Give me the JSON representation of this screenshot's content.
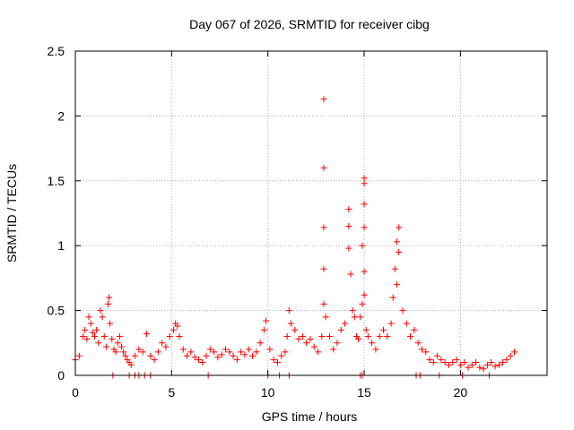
{
  "chart_data": {
    "type": "scatter",
    "title": "Day 067 of 2026, SRMTID for receiver cibg",
    "xlabel": "GPS time / hours",
    "ylabel": "SRMTID / TECUs",
    "xlim": [
      0,
      24.5
    ],
    "ylim": [
      0,
      2.5
    ],
    "x_ticks": [
      0,
      5,
      10,
      15,
      20
    ],
    "x_tick_labels": [
      "0",
      "5",
      "10",
      "15",
      "20"
    ],
    "y_ticks": [
      0,
      0.5,
      1,
      1.5,
      2,
      2.5
    ],
    "y_tick_labels": [
      "0",
      "0.5",
      "1",
      "1.5",
      "2",
      "2.5"
    ],
    "grid": true,
    "marker": "+",
    "marker_color": "#ff0000",
    "series": [
      {
        "name": "SRMTID",
        "x": [
          0.0,
          0.2,
          0.4,
          0.5,
          0.6,
          0.7,
          0.8,
          0.9,
          1.0,
          1.1,
          1.2,
          1.3,
          1.4,
          1.5,
          1.6,
          1.7,
          1.75,
          1.8,
          1.9,
          2.0,
          2.1,
          2.2,
          2.3,
          2.4,
          2.5,
          2.6,
          2.7,
          2.8,
          2.9,
          3.1,
          3.3,
          3.5,
          3.7,
          3.9,
          4.1,
          4.3,
          4.5,
          4.7,
          4.9,
          5.1,
          5.2,
          5.3,
          5.4,
          5.6,
          5.8,
          6.0,
          6.2,
          6.4,
          6.6,
          6.8,
          7.0,
          7.2,
          7.4,
          7.6,
          7.8,
          8.0,
          8.2,
          8.4,
          8.6,
          8.8,
          9.0,
          9.2,
          9.4,
          9.6,
          9.8,
          9.9,
          10.1,
          10.3,
          10.5,
          10.7,
          10.9,
          11.0,
          11.1,
          11.2,
          11.4,
          11.6,
          11.8,
          12.0,
          12.2,
          12.4,
          12.6,
          12.8,
          12.9,
          12.9,
          12.9,
          12.9,
          12.9,
          13.0,
          13.2,
          13.4,
          13.6,
          13.8,
          14.0,
          14.2,
          14.2,
          14.2,
          14.3,
          14.4,
          14.5,
          14.6,
          14.7,
          14.8,
          14.9,
          14.9,
          15.0,
          15.0,
          15.0,
          15.0,
          15.0,
          15.0,
          15.1,
          15.2,
          15.4,
          15.6,
          15.8,
          16.0,
          16.2,
          16.4,
          16.5,
          16.6,
          16.7,
          16.7,
          16.8,
          16.8,
          17.0,
          17.2,
          17.4,
          17.6,
          17.8,
          18.0,
          18.2,
          18.4,
          18.6,
          18.8,
          19.0,
          19.2,
          19.4,
          19.6,
          19.8,
          20.0,
          20.2,
          20.4,
          20.6,
          20.8,
          21.0,
          21.2,
          21.4,
          21.6,
          21.8,
          22.0,
          22.2,
          22.4,
          22.6,
          22.8,
          1.95,
          2.8,
          3.1,
          3.3,
          3.6,
          3.9,
          6.9,
          10.0,
          10.6,
          11.1,
          14.8,
          14.9,
          17.7,
          17.9,
          18.9,
          20.1,
          21.5
        ],
        "y": [
          0.12,
          0.15,
          0.3,
          0.35,
          0.28,
          0.45,
          0.4,
          0.33,
          0.3,
          0.35,
          0.25,
          0.5,
          0.45,
          0.3,
          0.22,
          0.55,
          0.6,
          0.4,
          0.28,
          0.2,
          0.18,
          0.25,
          0.3,
          0.22,
          0.18,
          0.15,
          0.12,
          0.1,
          0.08,
          0.15,
          0.2,
          0.18,
          0.32,
          0.15,
          0.12,
          0.18,
          0.25,
          0.22,
          0.3,
          0.35,
          0.4,
          0.38,
          0.3,
          0.2,
          0.15,
          0.18,
          0.14,
          0.12,
          0.1,
          0.15,
          0.2,
          0.18,
          0.14,
          0.16,
          0.2,
          0.18,
          0.15,
          0.12,
          0.18,
          0.16,
          0.2,
          0.15,
          0.18,
          0.25,
          0.35,
          0.42,
          0.2,
          0.12,
          0.1,
          0.15,
          0.18,
          0.3,
          0.5,
          0.4,
          0.35,
          0.28,
          0.3,
          0.25,
          0.28,
          0.22,
          0.18,
          0.3,
          0.55,
          0.82,
          1.14,
          1.6,
          2.13,
          0.45,
          0.3,
          0.2,
          0.25,
          0.35,
          0.4,
          1.28,
          1.15,
          0.98,
          0.78,
          0.5,
          0.45,
          0.3,
          0.28,
          0.45,
          1.0,
          0.55,
          1.52,
          1.48,
          1.32,
          1.14,
          0.8,
          0.62,
          0.35,
          0.3,
          0.25,
          0.2,
          0.3,
          0.35,
          0.3,
          0.4,
          0.6,
          0.82,
          1.03,
          0.7,
          1.14,
          0.95,
          0.5,
          0.4,
          0.3,
          0.35,
          0.25,
          0.2,
          0.18,
          0.12,
          0.1,
          0.15,
          0.12,
          0.1,
          0.08,
          0.1,
          0.12,
          0.08,
          0.1,
          0.06,
          0.08,
          0.1,
          0.06,
          0.05,
          0.08,
          0.1,
          0.07,
          0.08,
          0.1,
          0.12,
          0.15,
          0.18,
          0.0,
          0.0,
          0.0,
          0.0,
          0.0,
          0.0,
          0.0,
          0.0,
          0.0,
          0.0,
          0.0,
          0.0,
          0.0,
          0.0,
          0.0,
          0.0,
          0.0
        ]
      }
    ]
  }
}
